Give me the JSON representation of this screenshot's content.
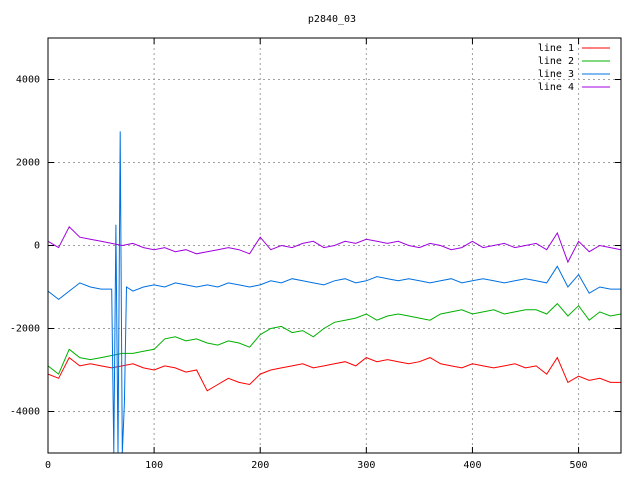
{
  "chart_data": {
    "type": "line",
    "title": "p2840_03",
    "xlabel": "",
    "ylabel": "",
    "xlim": [
      0,
      540
    ],
    "ylim": [
      -5000,
      5000
    ],
    "xticks": [
      0,
      100,
      200,
      300,
      400,
      500
    ],
    "yticks": [
      -4000,
      -2000,
      0,
      2000,
      4000
    ],
    "grid": true,
    "legend_position": "top-right",
    "series": [
      {
        "name": "line 1",
        "color": "#ff0000",
        "x": [
          0,
          10,
          20,
          30,
          40,
          50,
          60,
          70,
          80,
          90,
          100,
          110,
          120,
          130,
          140,
          150,
          160,
          170,
          180,
          190,
          200,
          210,
          220,
          230,
          240,
          250,
          260,
          270,
          280,
          290,
          300,
          310,
          320,
          330,
          340,
          350,
          360,
          370,
          380,
          390,
          400,
          410,
          420,
          430,
          440,
          450,
          460,
          470,
          480,
          490,
          500,
          510,
          520,
          530,
          540
        ],
        "y": [
          -3100,
          -3200,
          -2700,
          -2900,
          -2850,
          -2900,
          -2950,
          -2900,
          -2850,
          -2950,
          -3000,
          -2900,
          -2950,
          -3050,
          -3000,
          -3500,
          -3350,
          -3200,
          -3300,
          -3350,
          -3100,
          -3000,
          -2950,
          -2900,
          -2850,
          -2950,
          -2900,
          -2850,
          -2800,
          -2900,
          -2700,
          -2800,
          -2750,
          -2800,
          -2850,
          -2800,
          -2700,
          -2850,
          -2900,
          -2950,
          -2850,
          -2900,
          -2950,
          -2900,
          -2850,
          -2950,
          -2900,
          -3100,
          -2700,
          -3300,
          -3150,
          -3250,
          -3200,
          -3300,
          -3300
        ]
      },
      {
        "name": "line 2",
        "color": "#00b000",
        "x": [
          0,
          10,
          20,
          30,
          40,
          50,
          60,
          70,
          80,
          90,
          100,
          110,
          120,
          130,
          140,
          150,
          160,
          170,
          180,
          190,
          200,
          210,
          220,
          230,
          240,
          250,
          260,
          270,
          280,
          290,
          300,
          310,
          320,
          330,
          340,
          350,
          360,
          370,
          380,
          390,
          400,
          410,
          420,
          430,
          440,
          450,
          460,
          470,
          480,
          490,
          500,
          510,
          520,
          530,
          540
        ],
        "y": [
          -2900,
          -3100,
          -2500,
          -2700,
          -2750,
          -2700,
          -2650,
          -2600,
          -2600,
          -2550,
          -2500,
          -2250,
          -2200,
          -2300,
          -2250,
          -2350,
          -2400,
          -2300,
          -2350,
          -2450,
          -2150,
          -2000,
          -1950,
          -2100,
          -2050,
          -2200,
          -2000,
          -1850,
          -1800,
          -1750,
          -1650,
          -1800,
          -1700,
          -1650,
          -1700,
          -1750,
          -1800,
          -1650,
          -1600,
          -1550,
          -1650,
          -1600,
          -1550,
          -1650,
          -1600,
          -1550,
          -1550,
          -1650,
          -1400,
          -1700,
          -1450,
          -1800,
          -1600,
          -1700,
          -1650
        ]
      },
      {
        "name": "line 3",
        "color": "#0070e0",
        "x": [
          0,
          10,
          20,
          30,
          40,
          50,
          60,
          62,
          64,
          66,
          68,
          70,
          72,
          74,
          80,
          90,
          100,
          110,
          120,
          130,
          140,
          150,
          160,
          170,
          180,
          190,
          200,
          210,
          220,
          230,
          240,
          250,
          260,
          270,
          280,
          290,
          300,
          310,
          320,
          330,
          340,
          350,
          360,
          370,
          380,
          390,
          400,
          410,
          420,
          430,
          440,
          450,
          460,
          470,
          480,
          490,
          500,
          510,
          520,
          530,
          540
        ],
        "y": [
          -1100,
          -1300,
          -1100,
          -900,
          -1000,
          -1050,
          -1050,
          -5000,
          500,
          -5000,
          2750,
          -5000,
          -3800,
          -1000,
          -1100,
          -1000,
          -950,
          -1000,
          -900,
          -950,
          -1000,
          -950,
          -1000,
          -900,
          -950,
          -1000,
          -950,
          -850,
          -900,
          -800,
          -850,
          -900,
          -950,
          -850,
          -800,
          -900,
          -850,
          -750,
          -800,
          -850,
          -800,
          -850,
          -900,
          -850,
          -800,
          -900,
          -850,
          -800,
          -850,
          -900,
          -850,
          -800,
          -850,
          -900,
          -500,
          -1000,
          -700,
          -1150,
          -1000,
          -1050,
          -1050
        ]
      },
      {
        "name": "line 4",
        "color": "#a000e0",
        "x": [
          0,
          10,
          20,
          30,
          40,
          50,
          60,
          70,
          80,
          90,
          100,
          110,
          120,
          130,
          140,
          150,
          160,
          170,
          180,
          190,
          200,
          210,
          220,
          230,
          240,
          250,
          260,
          270,
          280,
          290,
          300,
          310,
          320,
          330,
          340,
          350,
          360,
          370,
          380,
          390,
          400,
          410,
          420,
          430,
          440,
          450,
          460,
          470,
          480,
          490,
          500,
          510,
          520,
          530,
          540
        ],
        "y": [
          100,
          -50,
          450,
          200,
          150,
          100,
          50,
          0,
          50,
          -50,
          -100,
          -50,
          -150,
          -100,
          -200,
          -150,
          -100,
          -50,
          -100,
          -200,
          200,
          -100,
          0,
          -50,
          50,
          100,
          -50,
          0,
          100,
          50,
          150,
          100,
          50,
          100,
          0,
          -50,
          50,
          0,
          -100,
          -50,
          100,
          -50,
          0,
          50,
          -50,
          0,
          50,
          -100,
          300,
          -400,
          100,
          -150,
          0,
          -50,
          -100
        ]
      }
    ]
  }
}
